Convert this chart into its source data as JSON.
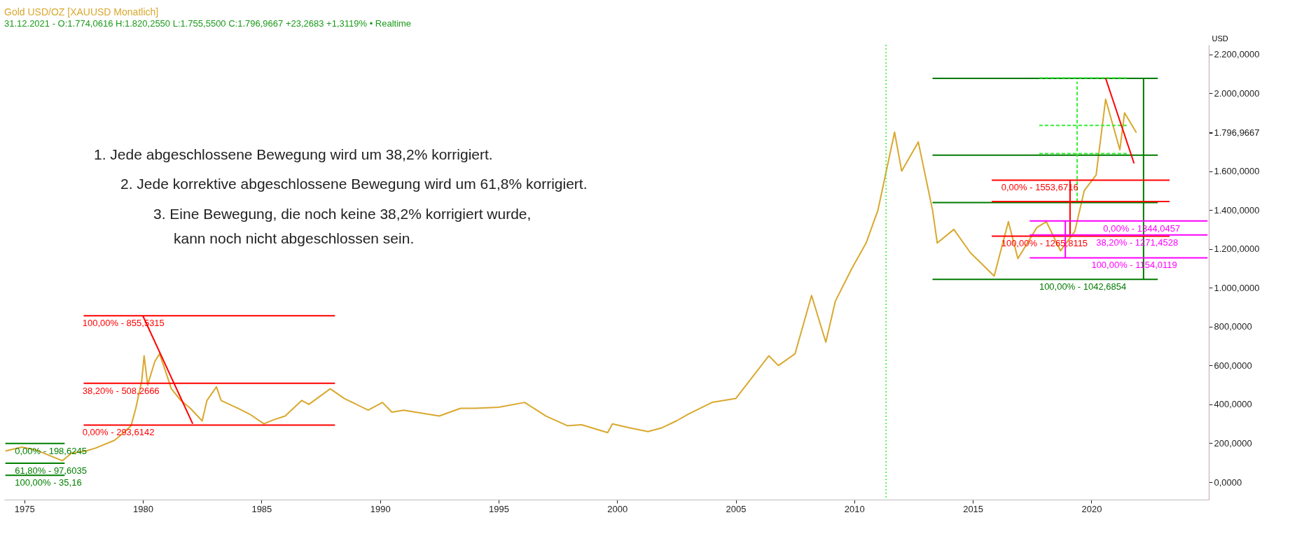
{
  "chart_data": {
    "type": "line",
    "title": "Gold USD/OZ [XAUUSD Monatlich]",
    "subtitle": "31.12.2021 - O:1.774,0616 H:1.820,2550 L:1.755,5500 C:1.796,9667 +23,2683 +1,3119% • Realtime",
    "ylabel": "USD",
    "xlim": [
      1974.15,
      2024.95
    ],
    "xticks": [
      1975,
      1980,
      1985,
      1990,
      1995,
      2000,
      2005,
      2010,
      2015,
      2020
    ],
    "ylim": [
      -90,
      2250
    ],
    "yticks": [
      {
        "value": 0,
        "label": "0,0000"
      },
      {
        "value": 200,
        "label": "200,0000"
      },
      {
        "value": 400,
        "label": "400,0000"
      },
      {
        "value": 600,
        "label": "600,0000"
      },
      {
        "value": 800,
        "label": "800,0000"
      },
      {
        "value": 1000,
        "label": "1.000,0000"
      },
      {
        "value": 1200,
        "label": "1.200,0000"
      },
      {
        "value": 1400,
        "label": "1.400,0000"
      },
      {
        "value": 1600,
        "label": "1.600,0000"
      },
      {
        "value": 1796.9667,
        "label": "1.796,9667"
      },
      {
        "value": 1800,
        "label": null
      },
      {
        "value": 2000,
        "label": "2.000,0000"
      },
      {
        "value": 2200,
        "label": "2.200,0000"
      }
    ],
    "series": [
      {
        "type": "line",
        "color": "#d9a82e",
        "x": [
          1974.2,
          1974.9,
          1975.5,
          1976.0,
          1976.6,
          1977.0,
          1977.6,
          1978.0,
          1978.8,
          1979.0,
          1979.5,
          1979.7,
          1979.95,
          1980.05,
          1980.2,
          1980.5,
          1980.7,
          1980.9,
          1981.2,
          1981.6,
          1982.0,
          1982.5,
          1982.7,
          1983.1,
          1983.3,
          1984.0,
          1984.5,
          1985.1,
          1985.5,
          1986.0,
          1986.7,
          1987.0,
          1987.9,
          1988.5,
          1989.5,
          1990.1,
          1990.5,
          1991.0,
          1992.5,
          1993.4,
          1994.0,
          1995.0,
          1996.1,
          1997.0,
          1997.9,
          1998.5,
          1999.6,
          1999.8,
          2000.5,
          2001.3,
          2001.9,
          2002.5,
          2003.0,
          2004.0,
          2005.0,
          2006.4,
          2006.8,
          2007.5,
          2008.2,
          2008.8,
          2009.2,
          2009.9,
          2010.5,
          2011.0,
          2011.7,
          2012.0,
          2012.7,
          2013.3,
          2013.5,
          2014.2,
          2014.9,
          2015.9,
          2016.5,
          2016.9,
          2017.7,
          2018.1,
          2018.7,
          2019.3,
          2019.7,
          2020.2,
          2020.6,
          2021.2,
          2021.4,
          2021.9
        ],
        "values": [
          160,
          180,
          165,
          140,
          110,
          150,
          160,
          175,
          215,
          235,
          290,
          380,
          520,
          650,
          500,
          620,
          660,
          590,
          480,
          420,
          380,
          315,
          420,
          490,
          420,
          380,
          350,
          300,
          320,
          340,
          420,
          400,
          480,
          430,
          370,
          410,
          360,
          370,
          340,
          380,
          380,
          385,
          410,
          340,
          290,
          295,
          255,
          300,
          280,
          260,
          280,
          315,
          350,
          410,
          430,
          650,
          600,
          660,
          960,
          720,
          930,
          1100,
          1230,
          1400,
          1800,
          1600,
          1750,
          1400,
          1230,
          1300,
          1180,
          1060,
          1340,
          1150,
          1310,
          1340,
          1190,
          1290,
          1500,
          1580,
          1970,
          1710,
          1900,
          1797
        ]
      },
      {
        "type": "line",
        "color": "#ff0000",
        "x": [
          1977.5,
          1988.1
        ],
        "values": [
          855.5315,
          855.5315
        ]
      },
      {
        "type": "line",
        "color": "#ff0000",
        "x": [
          1977.5,
          1988.1
        ],
        "values": [
          508.2666,
          508.2666
        ]
      },
      {
        "type": "line",
        "color": "#ff0000",
        "x": [
          1977.5,
          1988.1
        ],
        "values": [
          293.6142,
          293.6142
        ]
      },
      {
        "type": "line",
        "color": "#ff0000",
        "x": [
          1980.0,
          1982.1
        ],
        "values": [
          855,
          300
        ]
      },
      {
        "type": "line",
        "color": "#008000",
        "x": [
          1974.2,
          1976.7
        ],
        "values": [
          198.6245,
          198.6245
        ]
      },
      {
        "type": "line",
        "color": "#008000",
        "x": [
          1974.2,
          1976.7
        ],
        "values": [
          97.6035,
          97.6035
        ]
      },
      {
        "type": "line",
        "color": "#008000",
        "x": [
          1974.2,
          1976.7
        ],
        "values": [
          35.16,
          35.16
        ]
      },
      {
        "type": "line",
        "color": "#007a00",
        "x": [
          2013.3,
          2022.8
        ],
        "values": [
          2077,
          2077
        ]
      },
      {
        "type": "line",
        "color": "#007a00",
        "x": [
          2013.3,
          2022.8
        ],
        "values": [
          1681.9,
          1681.9
        ]
      },
      {
        "type": "line",
        "color": "#007a00",
        "x": [
          2013.3,
          2022.8
        ],
        "values": [
          1437.8,
          1437.8
        ]
      },
      {
        "type": "line",
        "color": "#007a00",
        "x": [
          2013.3,
          2022.8
        ],
        "values": [
          1042.6854,
          1042.6854
        ]
      },
      {
        "type": "line",
        "color": "#007a00",
        "x": [
          2022.2,
          2022.2
        ],
        "values": [
          1042.6854,
          2077
        ]
      },
      {
        "type": "line",
        "color": "#33ee33",
        "line_style": "dashed",
        "x": [
          2017.8,
          2021.5
        ],
        "values": [
          2080,
          2080
        ]
      },
      {
        "type": "line",
        "color": "#33ee33",
        "line_style": "dashed",
        "x": [
          2017.8,
          2021.5
        ],
        "values": [
          1835,
          1835
        ]
      },
      {
        "type": "line",
        "color": "#33ee33",
        "line_style": "dashed",
        "x": [
          2017.8,
          2021.5
        ],
        "values": [
          1690,
          1690
        ]
      },
      {
        "type": "line",
        "color": "#33ee33",
        "line_style": "dashed",
        "x": [
          2019.4,
          2019.4
        ],
        "values": [
          1443,
          2060
        ]
      },
      {
        "type": "line",
        "color": "#ff0000",
        "x": [
          2015.8,
          2023.3
        ],
        "values": [
          1553.6716,
          1553.6716
        ]
      },
      {
        "type": "line",
        "color": "#ff0000",
        "x": [
          2015.8,
          2023.3
        ],
        "values": [
          1443.7,
          1443.7
        ]
      },
      {
        "type": "line",
        "color": "#ff0000",
        "x": [
          2015.8,
          2023.3
        ],
        "values": [
          1265.8115,
          1265.8115
        ]
      },
      {
        "type": "line",
        "color": "#ff0000",
        "x": [
          2019.1,
          2019.1
        ],
        "values": [
          1265.8115,
          1553.6716
        ]
      },
      {
        "type": "line",
        "color": "#ff0000",
        "x": [
          2020.6,
          2021.8
        ],
        "values": [
          2078,
          1640
        ]
      },
      {
        "type": "line",
        "color": "#ff00ff",
        "x": [
          2017.4,
          2024.9
        ],
        "values": [
          1344.0457,
          1344.0457
        ]
      },
      {
        "type": "line",
        "color": "#ff00ff",
        "x": [
          2017.4,
          2024.9
        ],
        "values": [
          1271.4528,
          1271.4528
        ]
      },
      {
        "type": "line",
        "color": "#ff00ff",
        "x": [
          2017.4,
          2024.9
        ],
        "values": [
          1154.0119,
          1154.0119
        ]
      },
      {
        "type": "line",
        "color": "#ff00ff",
        "x": [
          2018.9,
          2018.9
        ],
        "values": [
          1154.0119,
          1344.0457
        ]
      }
    ],
    "ref_lines": [
      {
        "axis": "x",
        "value": 2011.34,
        "color": "#33ee33",
        "line_style": "dotted"
      }
    ],
    "annotations": [
      "1. Jede abgeschlossene Bewegung wird um 38,2% korrigiert.",
      "2. Jede korrektive abgeschlossene Bewegung wird um 61,8% korrigiert.",
      "3. Eine Bewegung, die noch keine 38,2% korrigiert wurde,",
      "kann noch nicht abgeschlossen sein.",
      {
        "text": "100,00% - 855,5315",
        "x": 1977.45,
        "y": 855.5315
      },
      {
        "text": "38,20% - 508,2666",
        "x": 1977.45,
        "y": 508.2666
      },
      {
        "text": "0,00% - 293,6142",
        "x": 1977.45,
        "y": 293.6142
      },
      {
        "text": "0,00% - 198,6245",
        "x": 1974.6,
        "y": 198.6245
      },
      {
        "text": "61,80% - 97,6035",
        "x": 1974.6,
        "y": 97.6035
      },
      {
        "text": "100,00% - 35,16",
        "x": 1974.6,
        "y": 35.16
      },
      {
        "text": "100,00% - 1042,6854",
        "x": 2017.8,
        "y": 1042.6854
      },
      {
        "text": "0,00% - 1553,6716",
        "x": 2016.2,
        "y": 1553.6716
      },
      {
        "text": "100,00% - 1265,8115",
        "x": 2016.2,
        "y": 1265.8115
      },
      {
        "text": "0,00% - 1344,0457",
        "x": 2020.5,
        "y": 1344.0457
      },
      {
        "text": "38,20% - 1271,4528",
        "x": 2020.2,
        "y": 1271.4528
      },
      {
        "text": "100,00% - 1154,0119",
        "x": 2020.0,
        "y": 1154.0119
      }
    ]
  }
}
